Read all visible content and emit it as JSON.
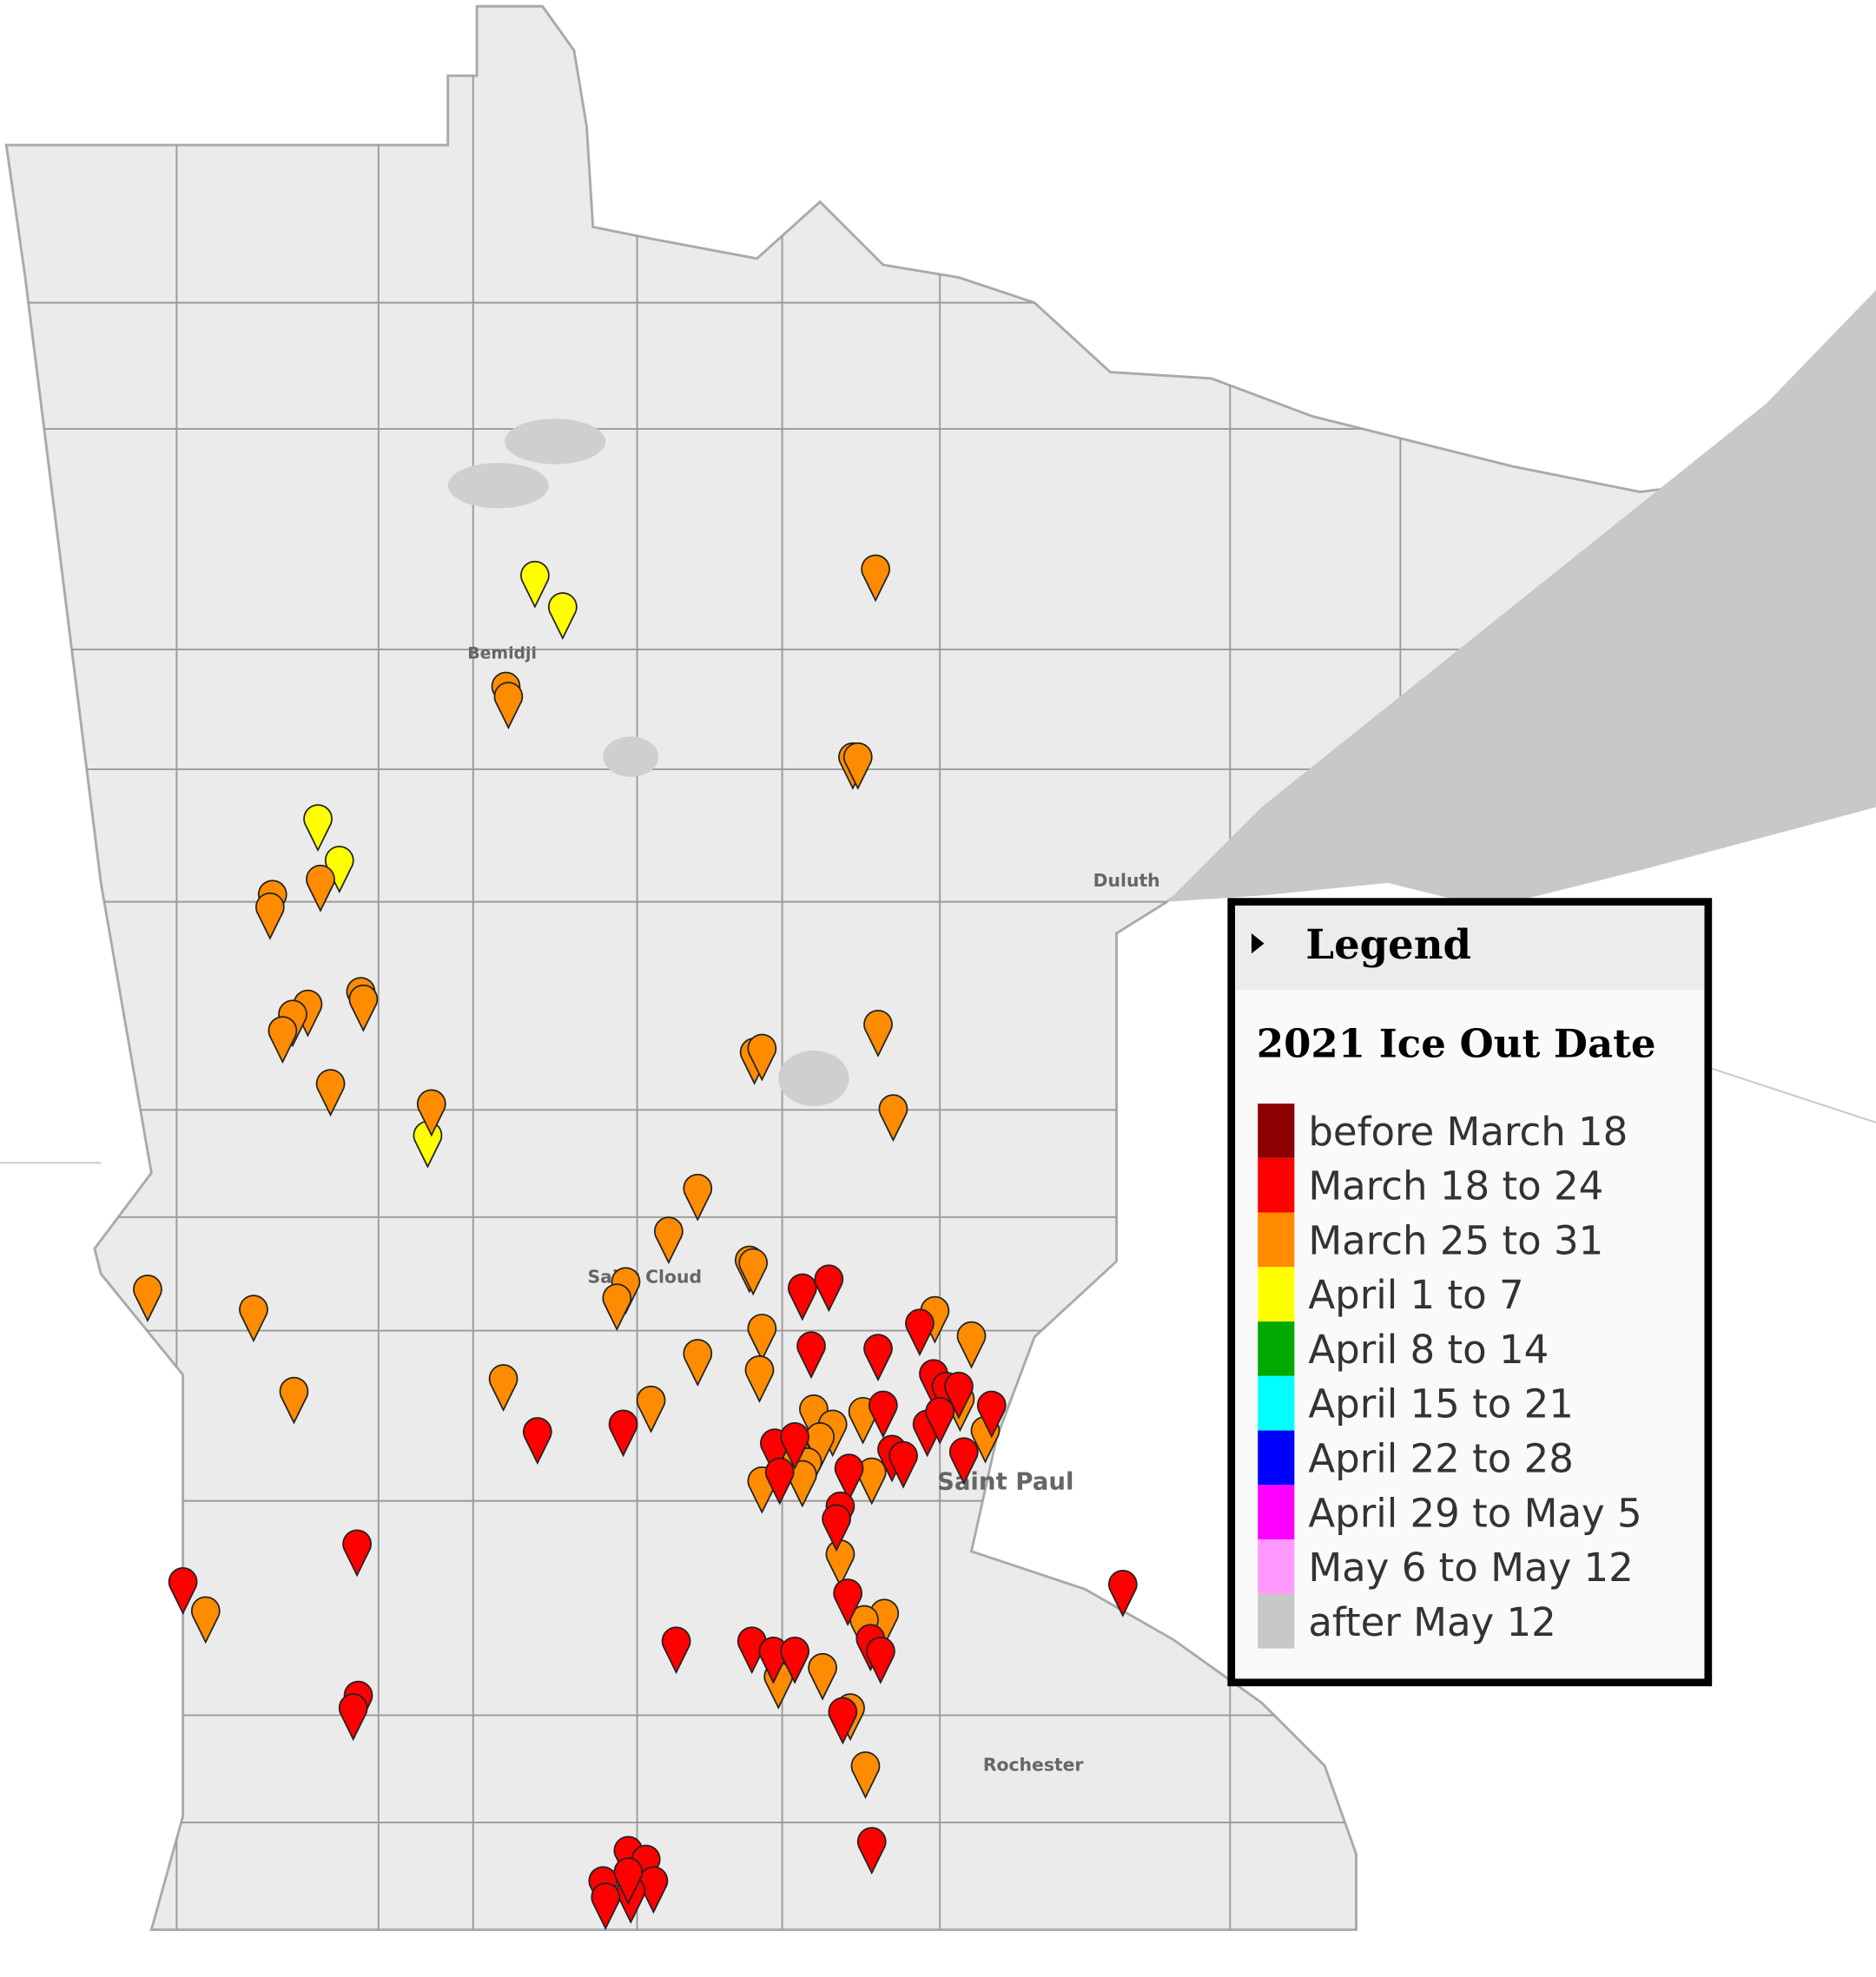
{
  "map": {
    "cities": [
      "Bemidji",
      "Duluth",
      "Saint Cloud",
      "Saint Paul",
      "Rochester"
    ]
  },
  "legend": {
    "header": "Legend",
    "title": "2021 Ice Out Date",
    "items": [
      {
        "label": "before March 18",
        "color": "#8b0000"
      },
      {
        "label": "March 18 to 24",
        "color": "#ff0000"
      },
      {
        "label": "March 25 to 31",
        "color": "#ff8c00"
      },
      {
        "label": "April 1 to 7",
        "color": "#ffff00"
      },
      {
        "label": "April 8 to 14",
        "color": "#00aa00"
      },
      {
        "label": "April 15 to 21",
        "color": "#00ffff"
      },
      {
        "label": "April 22 to 28",
        "color": "#0000ff"
      },
      {
        "label": "April 29 to May 5",
        "color": "#ff00ff"
      },
      {
        "label": "May 6 to May 12",
        "color": "#ff99ff"
      },
      {
        "label": "after May 12",
        "color": "#c8c8c8"
      }
    ]
  }
}
